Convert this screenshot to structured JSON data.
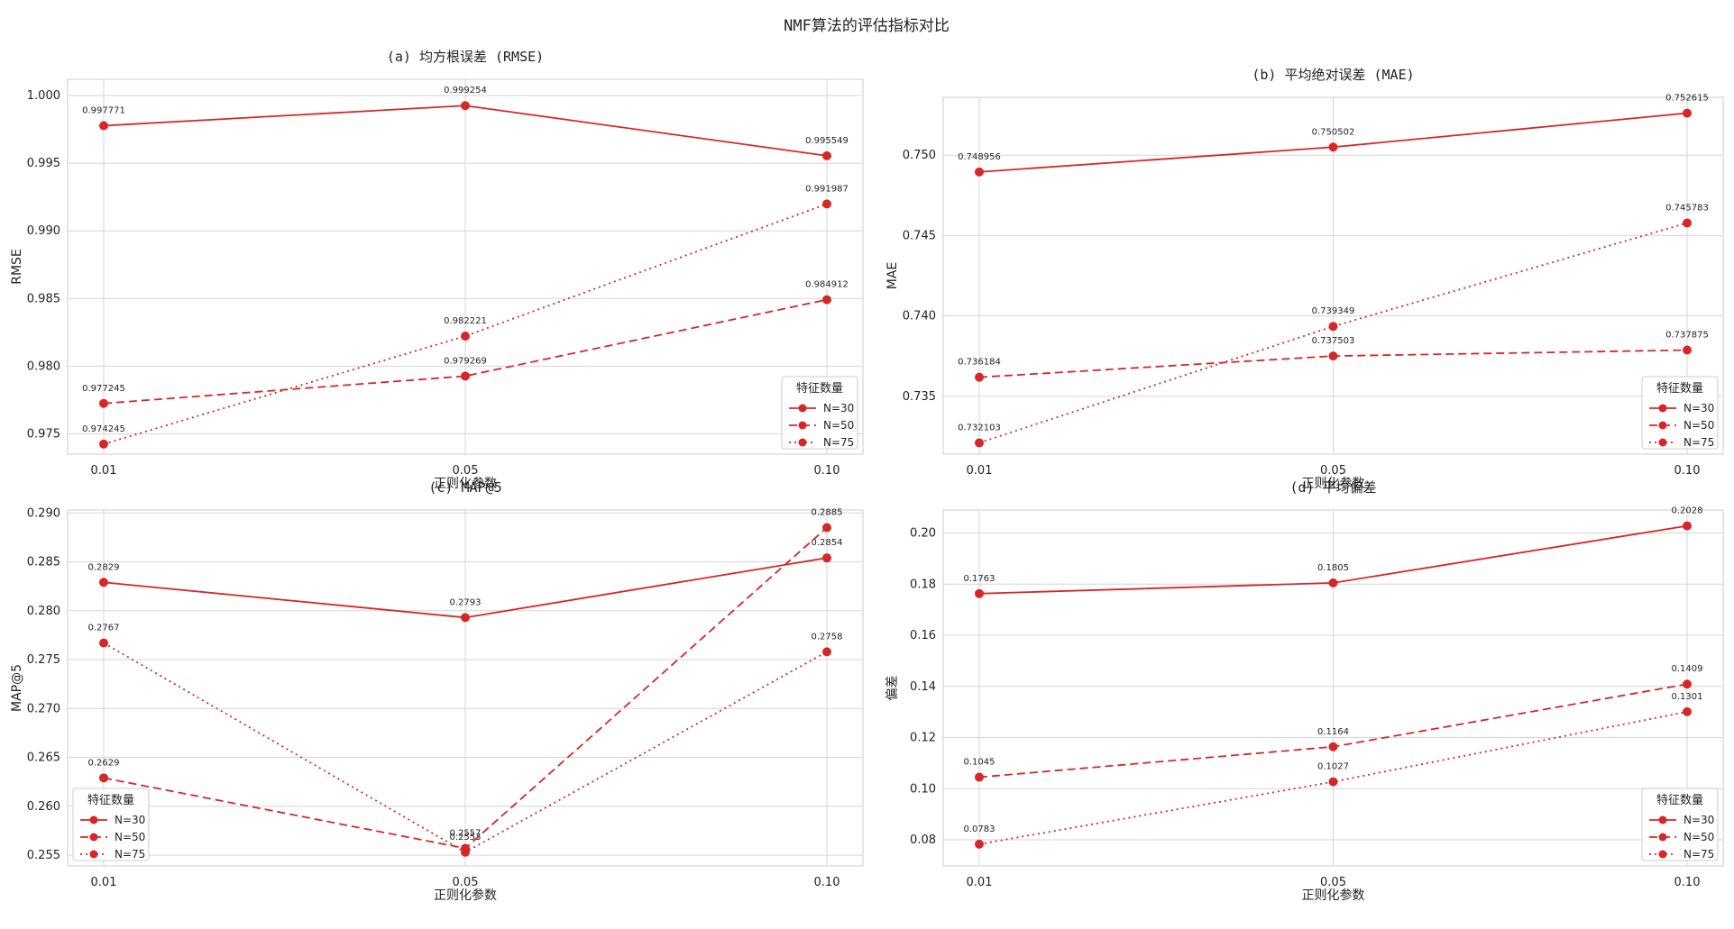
{
  "figure": {
    "suptitle": "NMF算法的评估指标对比"
  },
  "colors": {
    "line": "#d62728",
    "grid": "#d5d5d5",
    "frame": "#cccccc",
    "background": "#ffffff"
  },
  "chart_data": [
    {
      "type": "line",
      "title": "(a) 均方根误差 (RMSE)",
      "xlabel": "正则化参数",
      "ylabel": "RMSE",
      "categories": [
        "0.01",
        "0.05",
        "0.10"
      ],
      "ylim": [
        0.9735,
        1.0012
      ],
      "yticks": [
        0.975,
        0.98,
        0.985,
        0.99,
        0.995,
        1.0
      ],
      "ytick_labels": [
        "0.975",
        "0.980",
        "0.985",
        "0.990",
        "0.995",
        "1.000"
      ],
      "grid": true,
      "legend": {
        "title": "特征数量",
        "position": "lower-right"
      },
      "series": [
        {
          "name": "N=30",
          "dash": "solid",
          "values": [
            0.997771,
            0.999254,
            0.995549
          ],
          "labels": [
            "0.997771",
            "0.999254",
            "0.995549"
          ]
        },
        {
          "name": "N=50",
          "dash": "dashed",
          "values": [
            0.977245,
            0.979269,
            0.984912
          ],
          "labels": [
            "0.977245",
            "0.979269",
            "0.984912"
          ]
        },
        {
          "name": "N=75",
          "dash": "dotted",
          "values": [
            0.974245,
            0.982221,
            0.991987
          ],
          "labels": [
            "0.974245",
            "0.982221",
            "0.991987"
          ]
        }
      ]
    },
    {
      "type": "line",
      "title": "(b) 平均绝对误差 (MAE)",
      "xlabel": "正则化参数",
      "ylabel": "MAE",
      "categories": [
        "0.01",
        "0.05",
        "0.10"
      ],
      "ylim": [
        0.7314,
        0.7536
      ],
      "yticks": [
        0.735,
        0.74,
        0.745,
        0.75
      ],
      "ytick_labels": [
        "0.735",
        "0.740",
        "0.745",
        "0.750"
      ],
      "grid": true,
      "legend": {
        "title": "特征数量",
        "position": "lower-right"
      },
      "series": [
        {
          "name": "N=30",
          "dash": "solid",
          "values": [
            0.748956,
            0.750502,
            0.752615
          ],
          "labels": [
            "0.748956",
            "0.750502",
            "0.752615"
          ]
        },
        {
          "name": "N=50",
          "dash": "dashed",
          "values": [
            0.736184,
            0.737503,
            0.737875
          ],
          "labels": [
            "0.736184",
            "0.737503",
            "0.737875"
          ]
        },
        {
          "name": "N=75",
          "dash": "dotted",
          "values": [
            0.732103,
            0.739349,
            0.745783
          ],
          "labels": [
            "0.732103",
            "0.739349",
            "0.745783"
          ]
        }
      ]
    },
    {
      "type": "line",
      "title": "(c) MAP@5",
      "xlabel": "正则化参数",
      "ylabel": "MAP@5",
      "categories": [
        "0.01",
        "0.05",
        "0.10"
      ],
      "ylim": [
        0.2539,
        0.2903
      ],
      "yticks": [
        0.255,
        0.26,
        0.265,
        0.27,
        0.275,
        0.28,
        0.285,
        0.29
      ],
      "ytick_labels": [
        "0.255",
        "0.260",
        "0.265",
        "0.270",
        "0.275",
        "0.280",
        "0.285",
        "0.290"
      ],
      "grid": true,
      "legend": {
        "title": "特征数量",
        "position": "lower-left"
      },
      "series": [
        {
          "name": "N=30",
          "dash": "solid",
          "values": [
            0.2829,
            0.2793,
            0.2854
          ],
          "labels": [
            "0.2829",
            "0.2793",
            "0.2854"
          ]
        },
        {
          "name": "N=50",
          "dash": "dashed",
          "values": [
            0.2629,
            0.2557,
            0.2885
          ],
          "labels": [
            "0.2629",
            "0.2557",
            "0.2885"
          ]
        },
        {
          "name": "N=75",
          "dash": "dotted",
          "values": [
            0.2767,
            0.2553,
            0.2758
          ],
          "labels": [
            "0.2767",
            "0.2553",
            "0.2758"
          ]
        }
      ]
    },
    {
      "type": "line",
      "title": "(d) 平均偏差",
      "xlabel": "正则化参数",
      "ylabel": "偏差",
      "categories": [
        "0.01",
        "0.05",
        "0.10"
      ],
      "ylim": [
        0.0698,
        0.209
      ],
      "yticks": [
        0.08,
        0.1,
        0.12,
        0.14,
        0.16,
        0.18,
        0.2
      ],
      "ytick_labels": [
        "0.08",
        "0.10",
        "0.12",
        "0.14",
        "0.16",
        "0.18",
        "0.20"
      ],
      "grid": true,
      "legend": {
        "title": "特征数量",
        "position": "lower-right"
      },
      "series": [
        {
          "name": "N=30",
          "dash": "solid",
          "values": [
            0.1763,
            0.1805,
            0.2028
          ],
          "labels": [
            "0.1763",
            "0.1805",
            "0.2028"
          ]
        },
        {
          "name": "N=50",
          "dash": "dashed",
          "values": [
            0.1045,
            0.1164,
            0.1409
          ],
          "labels": [
            "0.1045",
            "0.1164",
            "0.1409"
          ]
        },
        {
          "name": "N=75",
          "dash": "dotted",
          "values": [
            0.0783,
            0.1027,
            0.1301
          ],
          "labels": [
            "0.0783",
            "0.1027",
            "0.1301"
          ]
        }
      ]
    }
  ]
}
